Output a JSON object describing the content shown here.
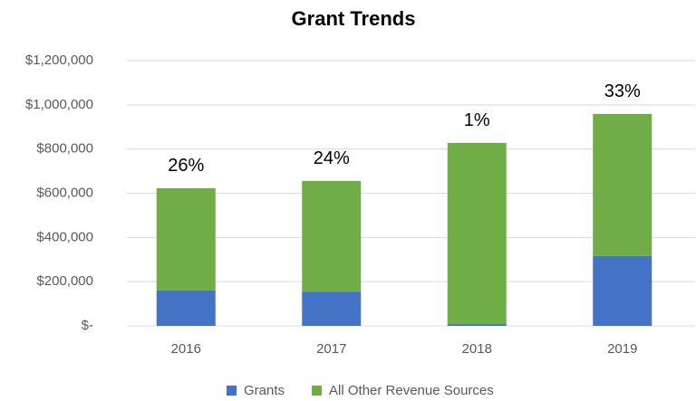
{
  "chart_data": {
    "type": "stacked_bar",
    "title": "Grant Trends",
    "categories": [
      "2016",
      "2017",
      "2018",
      "2019"
    ],
    "series": [
      {
        "name": "Grants",
        "color": "#4472c4",
        "values": [
          160000,
          155000,
          8000,
          316000
        ]
      },
      {
        "name": "All Other Revenue Sources",
        "color": "#70ad47",
        "values": [
          463000,
          501000,
          820000,
          643000
        ]
      }
    ],
    "annotations": [
      "26%",
      "24%",
      "1%",
      "33%"
    ],
    "ylim": [
      0,
      1200000
    ],
    "yticks": [
      {
        "value": 0,
        "label": "$-"
      },
      {
        "value": 200000,
        "label": "$200,000"
      },
      {
        "value": 400000,
        "label": "$400,000"
      },
      {
        "value": 600000,
        "label": "$600,000"
      },
      {
        "value": 800000,
        "label": "$800,000"
      },
      {
        "value": 1000000,
        "label": "$1,000,000"
      },
      {
        "value": 1200000,
        "label": "$1,200,000"
      }
    ],
    "grid": true,
    "legend": "bottom"
  }
}
